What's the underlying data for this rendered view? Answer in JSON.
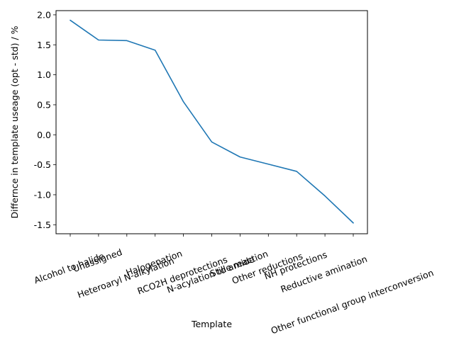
{
  "chart_data": {
    "type": "line",
    "title": "",
    "xlabel": "Template",
    "ylabel": "Differnce in template useage (opt - std) / %",
    "categories": [
      "Alcohol to halide",
      "Unassigned",
      "Heteroaryl N-alkylation",
      "Halogenation",
      "RCO2H deprotections",
      "N-acylation to amide",
      "Stille reaction",
      "Other reductions",
      "NH protections",
      "Reductive amination",
      "Other functional group interconversion"
    ],
    "series": [
      {
        "values": [
          1.91,
          1.58,
          1.57,
          1.41,
          0.55,
          -0.12,
          -0.37,
          -0.49,
          -0.61,
          -1.02,
          -1.47
        ],
        "color": "#1f77b4"
      }
    ],
    "ylim": [
      -1.65,
      2.07
    ],
    "yticks": [
      "-1.5",
      "-1.0",
      "-0.5",
      "0.0",
      "0.5",
      "1.0",
      "1.5",
      "2.0"
    ],
    "grid": false,
    "legend": "none"
  }
}
